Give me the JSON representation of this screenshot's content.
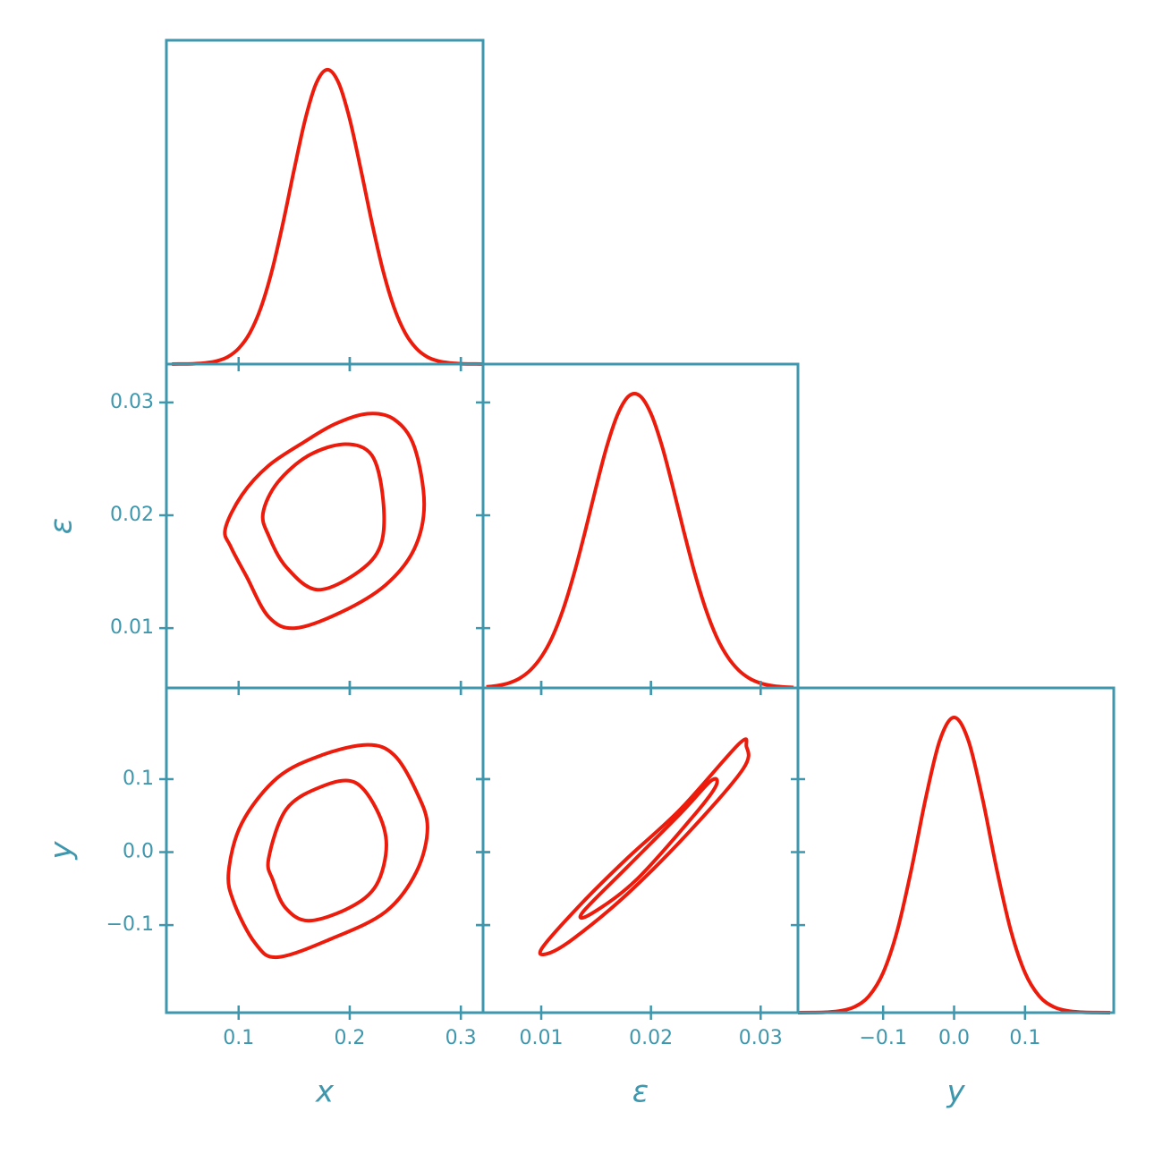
{
  "chart_data": [
    {
      "type": "density",
      "color": "#ec1b0b",
      "x": [
        0.04,
        0.05,
        0.06,
        0.07,
        0.08,
        0.09,
        0.1,
        0.11,
        0.12,
        0.13,
        0.14,
        0.15,
        0.16,
        0.17,
        0.18,
        0.19,
        0.2,
        0.21,
        0.22,
        0.23,
        0.24,
        0.25,
        0.26,
        0.27,
        0.28,
        0.29,
        0.3,
        0.31,
        0.32
      ],
      "values": [
        0.0001,
        0.0004,
        0.0013,
        0.0039,
        0.01,
        0.024,
        0.053,
        0.105,
        0.191,
        0.317,
        0.48,
        0.661,
        0.832,
        0.955,
        1,
        0.955,
        0.832,
        0.661,
        0.48,
        0.317,
        0.191,
        0.105,
        0.053,
        0.024,
        0.01,
        0.0039,
        0.0013,
        0.0004,
        0.0001
      ],
      "xlim": [
        0.035,
        0.32
      ],
      "ylim": [
        0,
        1.1
      ],
      "xticks": [
        0.1,
        0.2,
        0.3
      ]
    },
    {
      "type": "contour",
      "color": "#ec1b0b",
      "ylabel": "ε",
      "contours": [
        {
          "x": [
            0.088,
            0.103,
            0.127,
            0.159,
            0.187,
            0.216,
            0.24,
            0.258,
            0.267,
            0.258,
            0.232,
            0.192,
            0.151,
            0.127,
            0.107,
            0.093
          ],
          "y": [
            0.0188,
            0.0218,
            0.0244,
            0.0265,
            0.0281,
            0.029,
            0.0285,
            0.0261,
            0.021,
            0.017,
            0.0138,
            0.0114,
            0.01,
            0.011,
            0.0146,
            0.0172
          ]
        },
        {
          "x": [
            0.122,
            0.135,
            0.163,
            0.196,
            0.22,
            0.23,
            0.228,
            0.208,
            0.171,
            0.143,
            0.127
          ],
          "y": [
            0.0202,
            0.0229,
            0.0253,
            0.0263,
            0.0253,
            0.0214,
            0.0174,
            0.015,
            0.0134,
            0.0154,
            0.0182
          ]
        }
      ],
      "xlim": [
        0.035,
        0.32
      ],
      "ylim": [
        0.0047,
        0.0334
      ],
      "xticks": [
        0.1,
        0.2,
        0.3
      ],
      "yticks": [
        0.01,
        0.02,
        0.03
      ]
    },
    {
      "type": "density",
      "color": "#ec1b0b",
      "x": [
        0.005,
        0.006,
        0.007,
        0.008,
        0.009,
        0.01,
        0.011,
        0.012,
        0.013,
        0.014,
        0.015,
        0.016,
        0.017,
        0.018,
        0.019,
        0.02,
        0.021,
        0.022,
        0.023,
        0.024,
        0.025,
        0.026,
        0.027,
        0.028,
        0.029,
        0.03,
        0.031,
        0.032,
        0.033
      ],
      "values": [
        0.0034,
        0.0076,
        0.016,
        0.032,
        0.06,
        0.105,
        0.172,
        0.267,
        0.389,
        0.531,
        0.682,
        0.823,
        0.932,
        0.992,
        0.992,
        0.932,
        0.823,
        0.682,
        0.531,
        0.389,
        0.267,
        0.172,
        0.105,
        0.06,
        0.032,
        0.016,
        0.0076,
        0.0034,
        0.0014
      ],
      "xlim": [
        0.0047,
        0.0334
      ],
      "ylim": [
        0,
        1.1
      ],
      "xticks": [
        0.01,
        0.02,
        0.03
      ]
    },
    {
      "type": "contour",
      "color": "#ec1b0b",
      "xlabel": "x",
      "ylabel": "y",
      "contours": [
        {
          "x": [
            0.091,
            0.103,
            0.135,
            0.175,
            0.216,
            0.24,
            0.26,
            0.27,
            0.26,
            0.232,
            0.183,
            0.135,
            0.115,
            0.096
          ],
          "y": [
            -0.027,
            0.04,
            0.102,
            0.133,
            0.147,
            0.133,
            0.083,
            0.034,
            -0.027,
            -0.082,
            -0.119,
            -0.144,
            -0.125,
            -0.07
          ]
        },
        {
          "x": [
            0.127,
            0.143,
            0.175,
            0.204,
            0.224,
            0.233,
            0.224,
            0.2,
            0.163,
            0.142,
            0.131
          ],
          "y": [
            -0.009,
            0.059,
            0.09,
            0.096,
            0.059,
            0.01,
            -0.045,
            -0.076,
            -0.094,
            -0.076,
            -0.039
          ]
        }
      ],
      "xlim": [
        0.035,
        0.32
      ],
      "ylim": [
        -0.22,
        0.225
      ],
      "xticks": [
        0.1,
        0.2,
        0.3
      ],
      "yticks": [
        {
          "value": -0.1,
          "label": "−0.1"
        },
        {
          "value": 0,
          "label": "0.0"
        },
        0.1
      ]
    },
    {
      "type": "contour",
      "color": "#ec1b0b",
      "xlabel": "ε",
      "contours": [
        {
          "x": [
            0.0101,
            0.0137,
            0.0178,
            0.0227,
            0.028,
            0.0287,
            0.0284,
            0.0235,
            0.0178,
            0.0129,
            0.0106
          ],
          "y": [
            -0.131,
            -0.07,
            -0.009,
            0.059,
            0.148,
            0.145,
            0.114,
            0.028,
            -0.058,
            -0.119,
            -0.139
          ]
        },
        {
          "x": [
            0.0138,
            0.0178,
            0.0227,
            0.0255,
            0.0259,
            0.0239,
            0.0186,
            0.0145
          ],
          "y": [
            -0.082,
            -0.021,
            0.053,
            0.098,
            0.09,
            0.05,
            -0.039,
            -0.085
          ]
        }
      ],
      "xlim": [
        0.0047,
        0.0334
      ],
      "ylim": [
        -0.22,
        0.225
      ],
      "xticks": [
        0.01,
        0.02,
        0.03
      ],
      "yticks": [
        {
          "value": -0.1,
          "label": "−0.1"
        },
        {
          "value": 0,
          "label": "0.0"
        },
        0.1
      ]
    },
    {
      "type": "density",
      "color": "#ec1b0b",
      "xlabel": "y",
      "x": [
        -0.22,
        -0.2,
        -0.18,
        -0.16,
        -0.14,
        -0.12,
        -0.1,
        -0.08,
        -0.06,
        -0.04,
        -0.02,
        0,
        0.02,
        0.04,
        0.06,
        0.08,
        0.1,
        0.12,
        0.14,
        0.16,
        0.18,
        0.2,
        0.22
      ],
      "values": [
        0.0001,
        0.0003,
        0.0015,
        0.006,
        0.02,
        0.056,
        0.135,
        0.278,
        0.487,
        0.726,
        0.923,
        1,
        0.923,
        0.726,
        0.487,
        0.278,
        0.135,
        0.056,
        0.02,
        0.006,
        0.0015,
        0.0003,
        0.0001
      ],
      "xlim": [
        -0.22,
        0.225
      ],
      "ylim": [
        0,
        1.1
      ],
      "xticks": [
        {
          "value": -0.1,
          "label": "−0.1"
        },
        {
          "value": 0,
          "label": "0.0"
        },
        0.1
      ]
    }
  ]
}
